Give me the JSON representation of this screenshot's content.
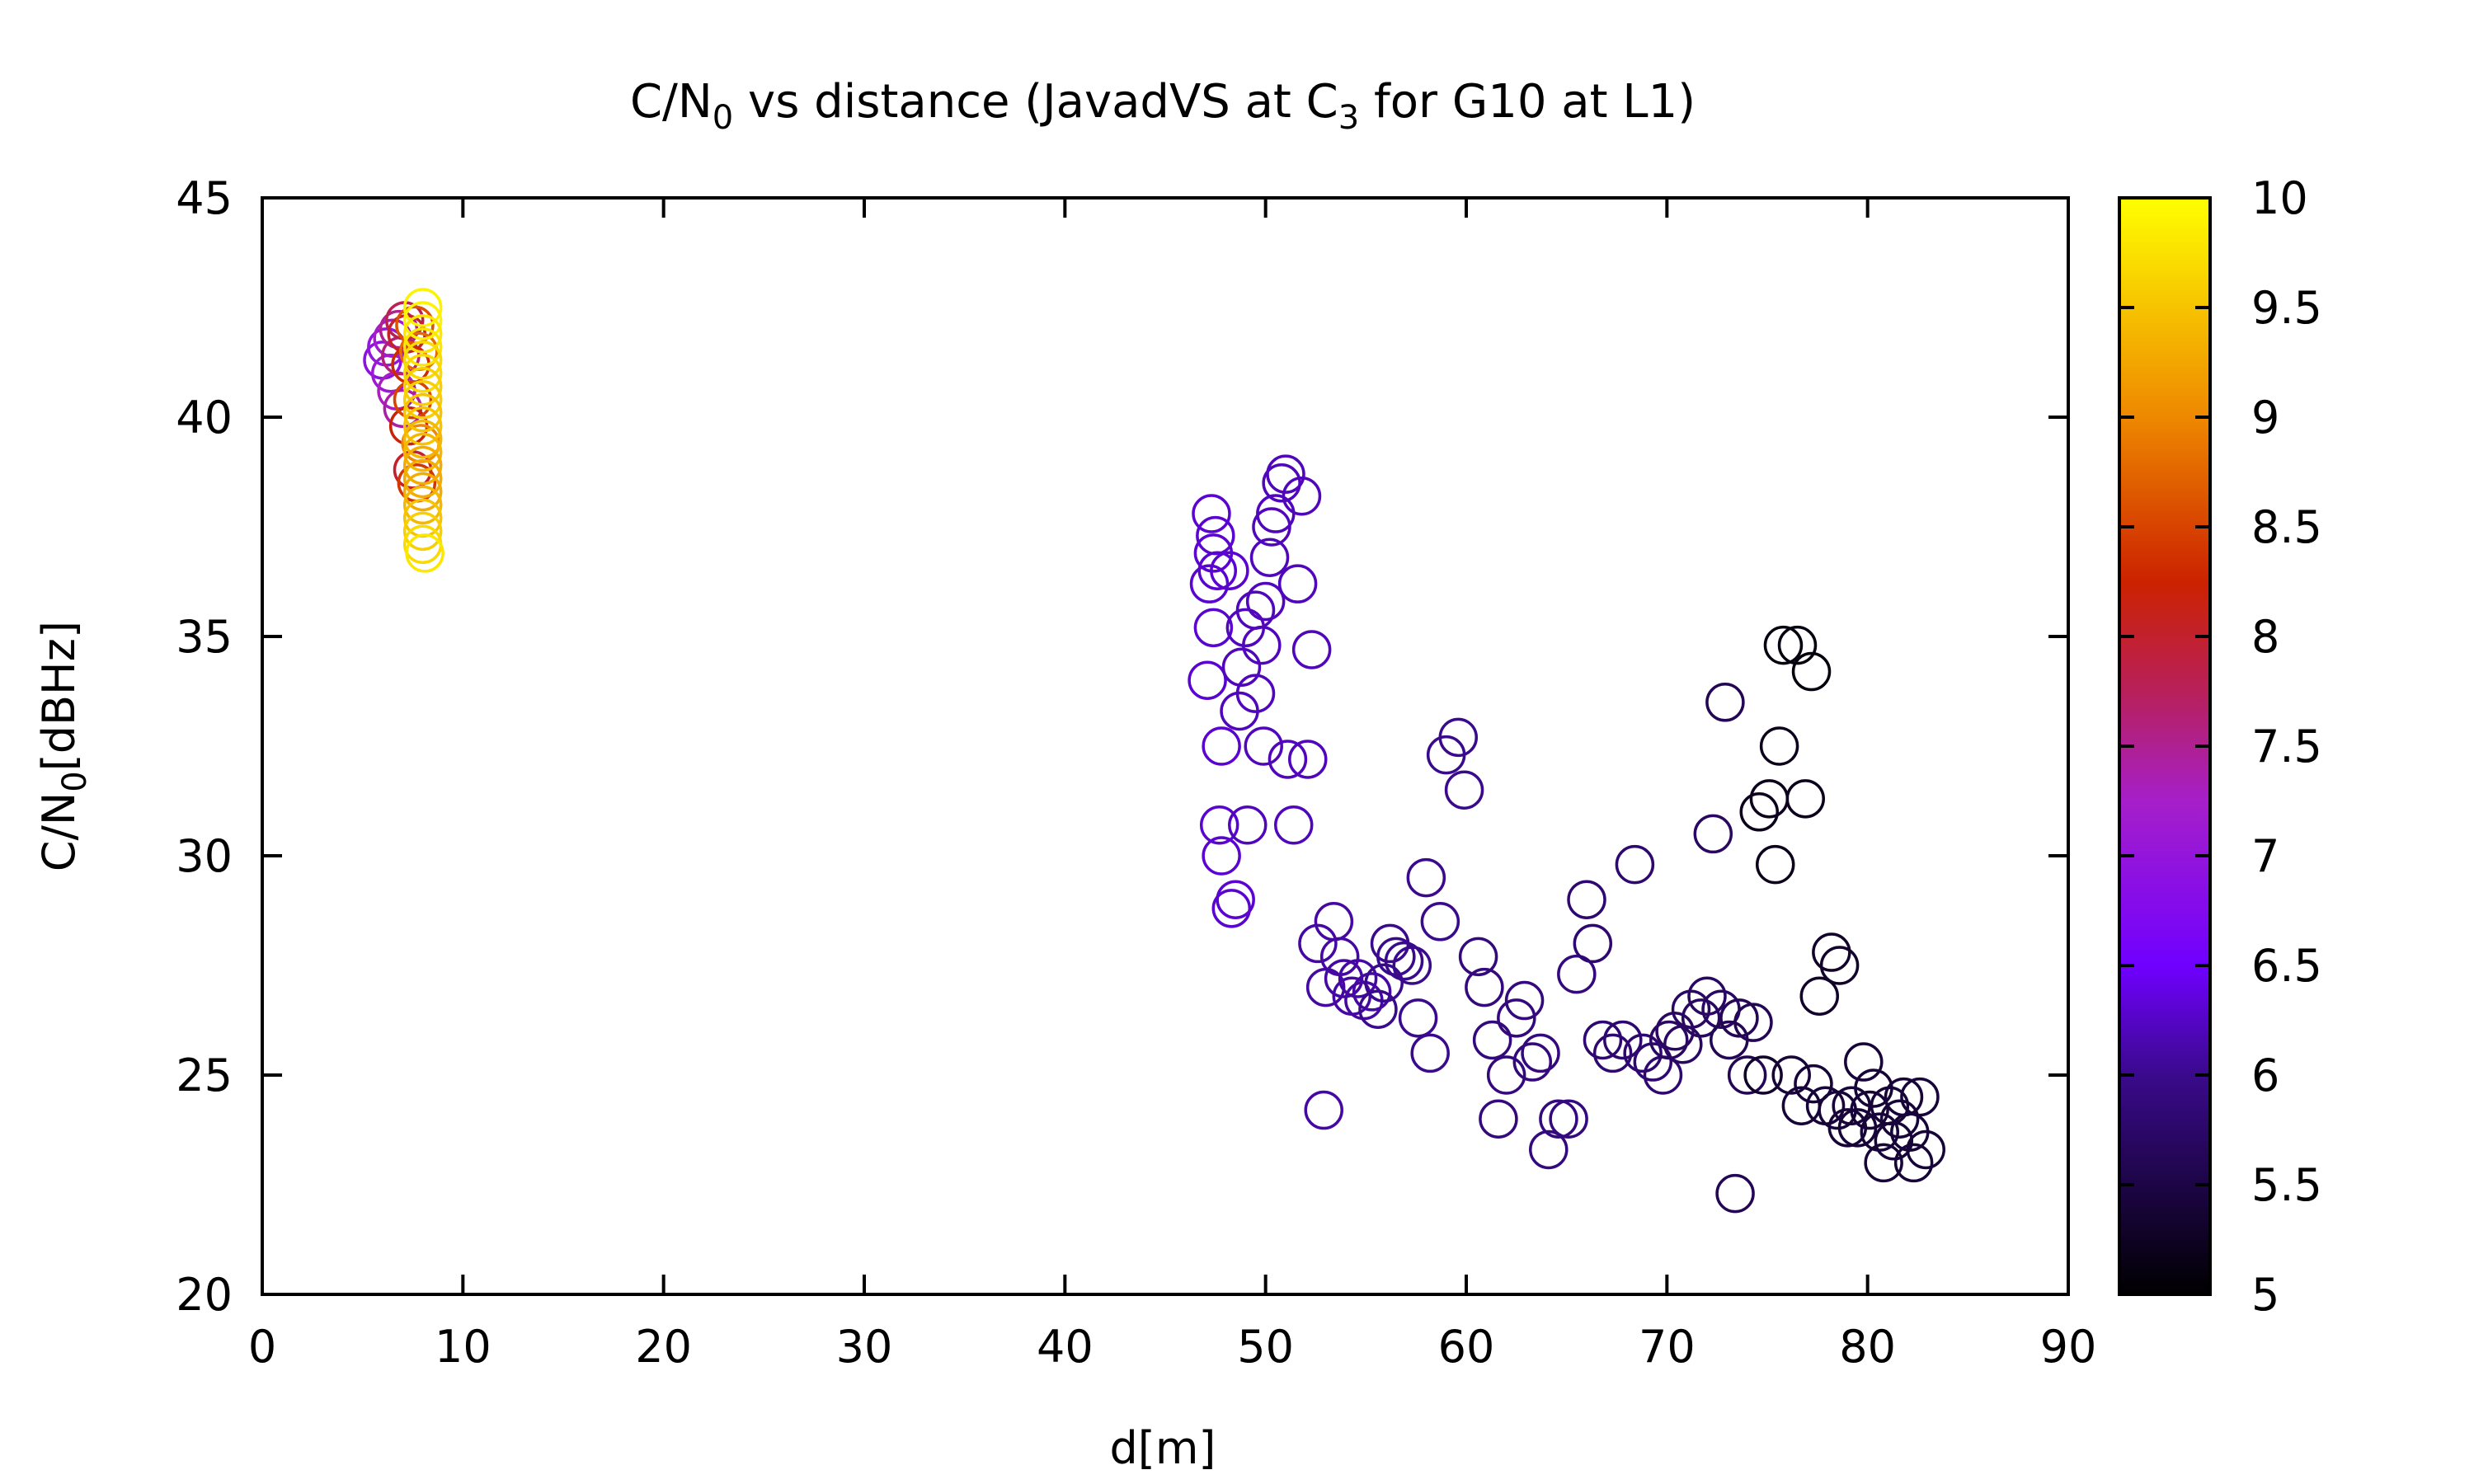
{
  "chart_data": {
    "type": "scatter",
    "title_parts": {
      "pre": "C/N",
      "sub": "0",
      "mid": " vs distance (JavadVS at C",
      "sub2": "3",
      "post": " for G10 at L1)"
    },
    "xlabel": "d[m]",
    "ylabel_parts": {
      "pre": "C/N",
      "sub": "0",
      "post": "[dBHz]"
    },
    "xlim": [
      0,
      90
    ],
    "ylim": [
      20,
      45
    ],
    "xticks": [
      0,
      10,
      20,
      30,
      40,
      50,
      60,
      70,
      80,
      90
    ],
    "yticks": [
      20,
      25,
      30,
      35,
      40,
      45
    ],
    "grid": false,
    "colorbar": {
      "range": [
        5,
        10
      ],
      "ticks": [
        "5",
        "5.5",
        "6",
        "6.5",
        "7",
        "7.5",
        "8",
        "8.5",
        "9",
        "9.5",
        "10"
      ],
      "palette": "black-blue-purple-red-orange-yellow"
    },
    "marker": "open-circle",
    "points": [
      [
        6.0,
        41.3,
        6.9
      ],
      [
        6.2,
        41.6,
        7.0
      ],
      [
        6.4,
        41.0,
        7.1
      ],
      [
        6.5,
        41.8,
        7.2
      ],
      [
        6.7,
        40.6,
        7.3
      ],
      [
        6.8,
        42.0,
        7.5
      ],
      [
        6.9,
        41.4,
        7.6
      ],
      [
        7.0,
        40.2,
        7.4
      ],
      [
        7.1,
        42.2,
        7.8
      ],
      [
        7.2,
        41.9,
        8.0
      ],
      [
        7.3,
        39.8,
        8.2
      ],
      [
        7.4,
        41.2,
        8.3
      ],
      [
        7.5,
        38.8,
        8.0
      ],
      [
        7.5,
        40.4,
        8.5
      ],
      [
        7.6,
        42.1,
        8.6
      ],
      [
        7.7,
        38.5,
        8.4
      ],
      [
        7.8,
        41.5,
        8.8
      ],
      [
        7.9,
        39.4,
        9.0
      ],
      [
        8.0,
        42.5,
        9.9
      ],
      [
        8.0,
        42.2,
        9.9
      ],
      [
        8.0,
        41.9,
        9.8
      ],
      [
        8.0,
        41.6,
        9.8
      ],
      [
        8.0,
        41.3,
        9.7
      ],
      [
        8.0,
        41.0,
        9.7
      ],
      [
        8.0,
        40.7,
        9.6
      ],
      [
        8.0,
        40.4,
        9.6
      ],
      [
        8.0,
        40.1,
        9.5
      ],
      [
        8.0,
        39.8,
        9.5
      ],
      [
        8.0,
        39.5,
        9.4
      ],
      [
        8.0,
        39.2,
        9.4
      ],
      [
        8.0,
        38.9,
        9.3
      ],
      [
        8.0,
        38.6,
        9.3
      ],
      [
        8.0,
        38.3,
        9.3
      ],
      [
        8.0,
        38.0,
        9.4
      ],
      [
        8.0,
        37.7,
        9.5
      ],
      [
        8.0,
        37.4,
        9.6
      ],
      [
        8.0,
        37.1,
        9.7
      ],
      [
        8.1,
        36.9,
        9.8
      ],
      [
        47.3,
        37.8,
        6.3
      ],
      [
        47.5,
        37.3,
        6.3
      ],
      [
        47.4,
        36.9,
        6.3
      ],
      [
        47.6,
        36.5,
        6.3
      ],
      [
        47.2,
        36.2,
        6.3
      ],
      [
        48.2,
        36.5,
        6.3
      ],
      [
        47.4,
        35.2,
        6.3
      ],
      [
        47.1,
        34.0,
        6.3
      ],
      [
        47.8,
        32.5,
        6.3
      ],
      [
        47.7,
        30.7,
        6.3
      ],
      [
        47.8,
        30.0,
        6.3
      ],
      [
        48.3,
        28.8,
        6.3
      ],
      [
        48.5,
        29.0,
        6.3
      ],
      [
        48.7,
        33.3,
        6.2
      ],
      [
        48.8,
        34.3,
        6.2
      ],
      [
        49.0,
        35.2,
        6.2
      ],
      [
        49.1,
        30.7,
        6.2
      ],
      [
        49.5,
        35.6,
        6.2
      ],
      [
        49.5,
        33.7,
        6.2
      ],
      [
        49.8,
        34.8,
        6.2
      ],
      [
        49.9,
        32.5,
        6.2
      ],
      [
        50.0,
        35.8,
        6.2
      ],
      [
        50.2,
        36.8,
        6.2
      ],
      [
        50.3,
        37.5,
        6.2
      ],
      [
        50.5,
        37.8,
        6.2
      ],
      [
        50.8,
        38.5,
        6.2
      ],
      [
        51.0,
        38.7,
        6.2
      ],
      [
        51.1,
        32.2,
        6.2
      ],
      [
        51.4,
        30.7,
        6.2
      ],
      [
        51.6,
        36.2,
        6.2
      ],
      [
        51.8,
        38.2,
        6.2
      ],
      [
        52.1,
        32.2,
        6.2
      ],
      [
        52.3,
        34.7,
        6.2
      ],
      [
        52.6,
        28.0,
        6.1
      ],
      [
        52.9,
        24.2,
        6.1
      ],
      [
        53.0,
        27.0,
        6.1
      ],
      [
        53.4,
        28.5,
        6.1
      ],
      [
        53.7,
        27.7,
        6.1
      ],
      [
        53.9,
        27.2,
        6.1
      ],
      [
        54.3,
        26.8,
        6.1
      ],
      [
        54.6,
        27.2,
        6.1
      ],
      [
        54.9,
        26.7,
        6.1
      ],
      [
        55.3,
        26.9,
        6.1
      ],
      [
        55.6,
        26.5,
        6.0
      ],
      [
        55.9,
        27.1,
        6.0
      ],
      [
        56.2,
        28.0,
        6.0
      ],
      [
        56.5,
        27.7,
        6.0
      ],
      [
        56.9,
        27.6,
        6.0
      ],
      [
        57.3,
        27.5,
        6.0
      ],
      [
        57.6,
        26.3,
        6.0
      ],
      [
        58.0,
        29.5,
        6.0
      ],
      [
        58.2,
        25.5,
        6.0
      ],
      [
        58.7,
        28.5,
        6.0
      ],
      [
        59.0,
        32.3,
        6.0
      ],
      [
        59.6,
        32.7,
        6.0
      ],
      [
        59.9,
        31.5,
        6.0
      ],
      [
        60.6,
        27.7,
        5.9
      ],
      [
        60.9,
        27.0,
        5.9
      ],
      [
        61.3,
        25.8,
        5.9
      ],
      [
        61.6,
        24.0,
        5.9
      ],
      [
        62.0,
        25.0,
        5.9
      ],
      [
        62.5,
        26.3,
        5.9
      ],
      [
        62.9,
        26.7,
        5.9
      ],
      [
        63.3,
        25.3,
        5.9
      ],
      [
        63.7,
        25.5,
        5.9
      ],
      [
        64.1,
        23.3,
        5.9
      ],
      [
        64.6,
        24.0,
        5.9
      ],
      [
        65.1,
        24.0,
        5.9
      ],
      [
        65.5,
        27.3,
        5.9
      ],
      [
        66.0,
        29.0,
        5.8
      ],
      [
        66.3,
        28.0,
        5.8
      ],
      [
        66.8,
        25.8,
        5.8
      ],
      [
        67.3,
        25.5,
        5.8
      ],
      [
        67.8,
        25.8,
        5.8
      ],
      [
        68.4,
        29.8,
        5.8
      ],
      [
        68.8,
        25.5,
        5.8
      ],
      [
        69.3,
        25.3,
        5.8
      ],
      [
        69.8,
        25.0,
        5.8
      ],
      [
        70.1,
        25.8,
        5.7
      ],
      [
        70.4,
        26.0,
        5.7
      ],
      [
        70.8,
        25.7,
        5.7
      ],
      [
        71.2,
        26.5,
        5.7
      ],
      [
        71.7,
        26.3,
        5.7
      ],
      [
        72.0,
        26.8,
        5.7
      ],
      [
        72.3,
        30.5,
        5.7
      ],
      [
        72.7,
        26.5,
        5.7
      ],
      [
        72.9,
        33.5,
        5.6
      ],
      [
        73.1,
        25.8,
        5.6
      ],
      [
        73.4,
        22.3,
        5.6
      ],
      [
        73.6,
        26.3,
        5.6
      ],
      [
        74.0,
        25.0,
        5.6
      ],
      [
        74.3,
        26.2,
        5.6
      ],
      [
        74.6,
        31.0,
        5.2
      ],
      [
        74.8,
        25.0,
        5.3
      ],
      [
        75.1,
        31.3,
        5.2
      ],
      [
        75.4,
        29.8,
        5.2
      ],
      [
        75.6,
        32.5,
        5.2
      ],
      [
        75.8,
        34.8,
        5.1
      ],
      [
        76.2,
        25.0,
        5.4
      ],
      [
        76.5,
        34.8,
        5.1
      ],
      [
        76.7,
        24.3,
        5.4
      ],
      [
        76.9,
        31.3,
        5.2
      ],
      [
        77.2,
        34.2,
        5.1
      ],
      [
        77.3,
        24.8,
        5.4
      ],
      [
        77.6,
        26.8,
        5.3
      ],
      [
        77.9,
        24.3,
        5.4
      ],
      [
        78.2,
        27.8,
        5.3
      ],
      [
        78.5,
        24.2,
        5.4
      ],
      [
        78.6,
        27.5,
        5.3
      ],
      [
        79.0,
        23.8,
        5.4
      ],
      [
        79.2,
        24.3,
        5.4
      ],
      [
        79.5,
        23.8,
        5.4
      ],
      [
        79.8,
        25.3,
        5.4
      ],
      [
        80.1,
        24.2,
        5.4
      ],
      [
        80.3,
        24.7,
        5.4
      ],
      [
        80.6,
        23.7,
        5.4
      ],
      [
        80.8,
        23.0,
        5.4
      ],
      [
        81.1,
        24.3,
        5.4
      ],
      [
        81.3,
        23.5,
        5.4
      ],
      [
        81.6,
        24.0,
        5.4
      ],
      [
        81.8,
        24.5,
        5.4
      ],
      [
        82.1,
        23.7,
        5.4
      ],
      [
        82.3,
        23.0,
        5.4
      ],
      [
        82.6,
        24.5,
        5.4
      ],
      [
        82.9,
        23.3,
        5.4
      ]
    ]
  }
}
